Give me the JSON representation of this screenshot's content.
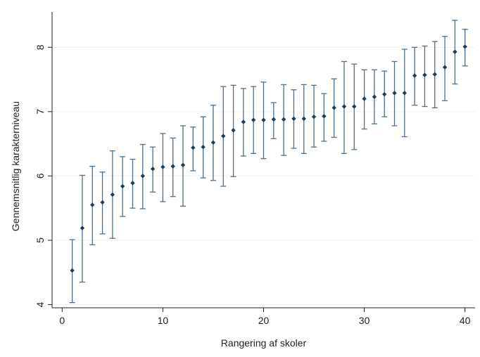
{
  "chart_data": {
    "type": "scatter",
    "title": "",
    "xlabel": "Rangering af skoler",
    "ylabel": "Gennemsnitlig karakterniveau",
    "xlim": [
      -1,
      41
    ],
    "ylim": [
      3.95,
      8.55
    ],
    "xticks": [
      0,
      10,
      20,
      30,
      40
    ],
    "yticks": [
      4,
      5,
      6,
      7,
      8
    ],
    "xtick_labels": [
      "0",
      "10",
      "20",
      "30",
      "40"
    ],
    "ytick_labels": [
      "4",
      "5",
      "6",
      "7",
      "8"
    ],
    "grid": "horizontal",
    "colors": {
      "marker": "#1a3d5c",
      "errorbar": "#4e6f8c",
      "grid": "#eef1f4",
      "axis": "#222222"
    },
    "series": [
      {
        "x": [
          1,
          2,
          3,
          4,
          5,
          6,
          7,
          8,
          9,
          10,
          11,
          12,
          13,
          14,
          15,
          16,
          17,
          18,
          19,
          20,
          21,
          22,
          23,
          24,
          25,
          26,
          27,
          28,
          29,
          30,
          31,
          32,
          33,
          34,
          35,
          36,
          37,
          38,
          39,
          40
        ],
        "y": [
          4.53,
          5.19,
          5.55,
          5.59,
          5.71,
          5.84,
          5.89,
          6.0,
          6.11,
          6.14,
          6.15,
          6.17,
          6.44,
          6.45,
          6.52,
          6.62,
          6.71,
          6.84,
          6.87,
          6.87,
          6.88,
          6.88,
          6.89,
          6.89,
          6.92,
          6.93,
          7.06,
          7.08,
          7.08,
          7.2,
          7.23,
          7.27,
          7.29,
          7.29,
          7.56,
          7.57,
          7.58,
          7.69,
          7.93,
          8.01
        ],
        "lower": [
          4.03,
          4.35,
          4.93,
          5.1,
          5.03,
          5.37,
          5.5,
          5.49,
          5.75,
          5.6,
          5.68,
          5.53,
          6.08,
          5.97,
          5.93,
          5.84,
          5.99,
          6.31,
          6.35,
          6.27,
          6.58,
          6.32,
          6.43,
          6.35,
          6.45,
          6.54,
          6.6,
          6.35,
          6.41,
          6.73,
          6.81,
          6.92,
          6.78,
          6.61,
          7.1,
          7.08,
          7.06,
          7.17,
          7.43,
          7.71
        ],
        "upper": [
          5.01,
          6.01,
          6.15,
          6.06,
          6.39,
          6.3,
          6.26,
          6.49,
          6.45,
          6.66,
          6.59,
          6.78,
          6.76,
          6.92,
          7.1,
          7.39,
          7.41,
          7.36,
          7.39,
          7.46,
          7.14,
          7.42,
          7.34,
          7.42,
          7.41,
          7.28,
          7.51,
          7.78,
          7.74,
          7.65,
          7.65,
          7.63,
          7.78,
          7.97,
          8.0,
          8.02,
          8.09,
          8.17,
          8.42,
          8.28
        ]
      }
    ]
  }
}
